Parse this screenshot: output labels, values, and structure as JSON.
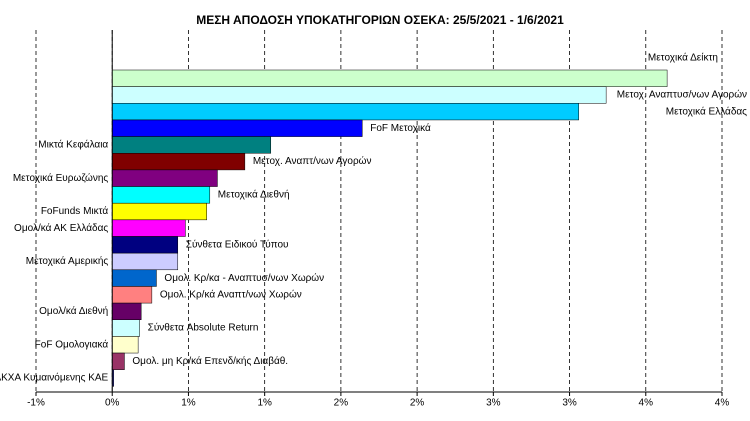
{
  "chart_data": {
    "type": "barh",
    "title": "ΜΕΣΗ ΑΠΟΔΟΣΗ ΥΠΟΚΑΤΗΓΟΡΙΩΝ ΟΣΕΚΑ: 25/5/2021 - 1/6/2021",
    "categories": [
      "Μετοχικά Δείκτη",
      "Μετοχ. Αναπτυσ/νων Αγορών",
      "Μετοχικά Ελλάδας",
      "FoF Μετοχικά",
      "Μικτά Κεφάλαια",
      "Μετοχ. Αναπτ/νων Αγορών",
      "Μετοχικά Ευρωζώνης",
      "Μετοχικά Διεθνή",
      "FoFunds Μικτά",
      "Ομολ/κά ΑΚ Ελλάδας",
      "Σύνθετα Ειδικού Τύπου",
      "Μετοχικά Αμερικής",
      "Ομολ. Κρ/κα - Αναπτυσ/νων Χωρών",
      "Ομολ. Κρ/κά Αναπτ/νων Χωρών",
      "Ομολ/κά Διεθνή",
      "Σύνθετα Absolute Return",
      "FoF Ομολογιακά",
      "Ομολ. μη Κρ/κά Επενδ/κής Διαβάθ.",
      "ΑΚΧΑ Κυμαινόμενης ΚΑΕ"
    ],
    "values": [
      3.64,
      3.24,
      3.06,
      1.64,
      1.04,
      0.87,
      0.69,
      0.64,
      0.62,
      0.48,
      0.43,
      0.43,
      0.29,
      0.26,
      0.19,
      0.18,
      0.17,
      0.08,
      0.01
    ],
    "colors": [
      "#ccffcc",
      "#ccffff",
      "#00ccff",
      "#0000ff",
      "#008080",
      "#800000",
      "#800080",
      "#00ffff",
      "#ffff00",
      "#ff00ff",
      "#000080",
      "#ccccff",
      "#0066cc",
      "#ff8080",
      "#660066",
      "#ccffff",
      "#ffffcc",
      "#993366",
      "#333399"
    ],
    "xlim": [
      -0.5,
      4
    ],
    "xticks": [
      {
        "value": -0.5,
        "label": "-1%"
      },
      {
        "value": 0,
        "label": "0%"
      },
      {
        "value": 0.5,
        "label": "1%"
      },
      {
        "value": 1,
        "label": "1%"
      },
      {
        "value": 1.5,
        "label": "2%"
      },
      {
        "value": 2,
        "label": "2%"
      },
      {
        "value": 2.5,
        "label": "3%"
      },
      {
        "value": 3,
        "label": "3%"
      },
      {
        "value": 3.5,
        "label": "4%"
      },
      {
        "value": 4,
        "label": "4%"
      }
    ],
    "grid": true
  }
}
